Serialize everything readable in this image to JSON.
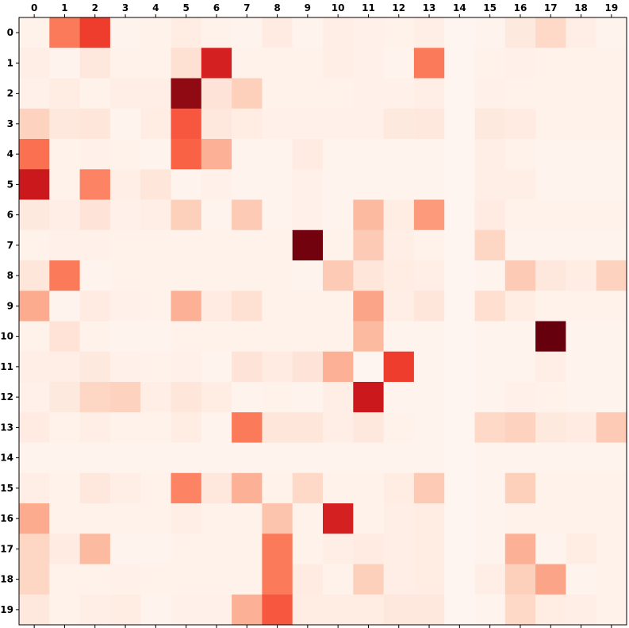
{
  "chart_data": {
    "type": "heatmap",
    "colormap": "Reds",
    "vmin": 0,
    "vmax": 1,
    "x_tick_labels": [
      "0",
      "1",
      "2",
      "3",
      "4",
      "5",
      "6",
      "7",
      "8",
      "9",
      "10",
      "11",
      "12",
      "13",
      "14",
      "15",
      "16",
      "17",
      "18",
      "19"
    ],
    "y_tick_labels": [
      "0",
      "1",
      "2",
      "3",
      "4",
      "5",
      "6",
      "7",
      "8",
      "9",
      "10",
      "11",
      "12",
      "13",
      "14",
      "15",
      "16",
      "17",
      "18",
      "19"
    ],
    "x_axis_position": "top",
    "values": [
      [
        0.02,
        0.45,
        0.62,
        0.01,
        0.02,
        0.05,
        0.02,
        0.01,
        0.06,
        0.01,
        0.04,
        0.03,
        0.02,
        0.04,
        0.0,
        0.01,
        0.07,
        0.15,
        0.04,
        0.01
      ],
      [
        0.04,
        0.01,
        0.08,
        0.02,
        0.02,
        0.12,
        0.72,
        0.02,
        0.02,
        0.02,
        0.04,
        0.03,
        0.01,
        0.45,
        0.0,
        0.02,
        0.03,
        0.02,
        0.02,
        0.02
      ],
      [
        0.03,
        0.05,
        0.02,
        0.04,
        0.04,
        0.92,
        0.1,
        0.18,
        0.02,
        0.02,
        0.02,
        0.03,
        0.03,
        0.04,
        0.0,
        0.03,
        0.02,
        0.02,
        0.02,
        0.02
      ],
      [
        0.17,
        0.08,
        0.09,
        0.01,
        0.05,
        0.55,
        0.08,
        0.05,
        0.03,
        0.03,
        0.03,
        0.03,
        0.07,
        0.08,
        0.0,
        0.07,
        0.06,
        0.02,
        0.02,
        0.02
      ],
      [
        0.48,
        0.02,
        0.03,
        0.02,
        0.01,
        0.52,
        0.28,
        0.01,
        0.01,
        0.06,
        0.01,
        0.01,
        0.01,
        0.01,
        0.0,
        0.04,
        0.02,
        0.01,
        0.01,
        0.01
      ],
      [
        0.75,
        0.02,
        0.42,
        0.04,
        0.09,
        0.01,
        0.03,
        0.01,
        0.01,
        0.03,
        0.01,
        0.01,
        0.01,
        0.01,
        0.0,
        0.04,
        0.04,
        0.01,
        0.01,
        0.01
      ],
      [
        0.07,
        0.04,
        0.1,
        0.03,
        0.04,
        0.18,
        0.01,
        0.2,
        0.01,
        0.03,
        0.01,
        0.25,
        0.05,
        0.35,
        0.0,
        0.06,
        0.02,
        0.02,
        0.02,
        0.02
      ],
      [
        0.02,
        0.03,
        0.03,
        0.02,
        0.02,
        0.02,
        0.02,
        0.02,
        0.02,
        0.98,
        0.02,
        0.2,
        0.04,
        0.02,
        0.0,
        0.16,
        0.01,
        0.01,
        0.01,
        0.01
      ],
      [
        0.09,
        0.45,
        0.01,
        0.02,
        0.02,
        0.02,
        0.02,
        0.02,
        0.02,
        0.01,
        0.2,
        0.09,
        0.05,
        0.04,
        0.0,
        0.01,
        0.2,
        0.08,
        0.05,
        0.17
      ],
      [
        0.3,
        0.01,
        0.06,
        0.03,
        0.02,
        0.28,
        0.06,
        0.12,
        0.02,
        0.02,
        0.02,
        0.32,
        0.04,
        0.09,
        0.0,
        0.13,
        0.05,
        0.02,
        0.02,
        0.02
      ],
      [
        0.02,
        0.11,
        0.02,
        0.01,
        0.01,
        0.02,
        0.02,
        0.02,
        0.02,
        0.02,
        0.02,
        0.25,
        0.01,
        0.01,
        0.0,
        0.01,
        0.01,
        1.0,
        0.01,
        0.01
      ],
      [
        0.04,
        0.04,
        0.07,
        0.03,
        0.02,
        0.03,
        0.01,
        0.1,
        0.06,
        0.1,
        0.28,
        0.0,
        0.62,
        0.01,
        0.0,
        0.01,
        0.01,
        0.04,
        0.01,
        0.01
      ],
      [
        0.03,
        0.07,
        0.16,
        0.17,
        0.04,
        0.09,
        0.05,
        0.01,
        0.02,
        0.01,
        0.04,
        0.75,
        0.01,
        0.01,
        0.0,
        0.01,
        0.03,
        0.02,
        0.01,
        0.01
      ],
      [
        0.06,
        0.02,
        0.04,
        0.02,
        0.02,
        0.05,
        0.01,
        0.45,
        0.09,
        0.09,
        0.04,
        0.08,
        0.02,
        0.01,
        0.0,
        0.15,
        0.17,
        0.07,
        0.06,
        0.2
      ],
      [
        0.01,
        0.01,
        0.01,
        0.01,
        0.01,
        0.01,
        0.01,
        0.01,
        0.01,
        0.01,
        0.01,
        0.01,
        0.01,
        0.01,
        0.0,
        0.01,
        0.01,
        0.01,
        0.01,
        0.01
      ],
      [
        0.04,
        0.02,
        0.08,
        0.04,
        0.02,
        0.42,
        0.08,
        0.28,
        0.02,
        0.15,
        0.02,
        0.02,
        0.05,
        0.2,
        0.0,
        0.01,
        0.18,
        0.02,
        0.02,
        0.02
      ],
      [
        0.3,
        0.02,
        0.02,
        0.02,
        0.02,
        0.04,
        0.02,
        0.02,
        0.22,
        0.02,
        0.72,
        0.02,
        0.04,
        0.05,
        0.0,
        0.01,
        0.02,
        0.02,
        0.02,
        0.02
      ],
      [
        0.16,
        0.06,
        0.25,
        0.01,
        0.01,
        0.02,
        0.02,
        0.02,
        0.45,
        0.02,
        0.04,
        0.06,
        0.04,
        0.05,
        0.0,
        0.01,
        0.28,
        0.01,
        0.05,
        0.02
      ],
      [
        0.16,
        0.02,
        0.02,
        0.03,
        0.02,
        0.02,
        0.02,
        0.02,
        0.45,
        0.06,
        0.02,
        0.18,
        0.04,
        0.05,
        0.0,
        0.04,
        0.18,
        0.32,
        0.01,
        0.02
      ],
      [
        0.08,
        0.02,
        0.04,
        0.05,
        0.01,
        0.03,
        0.03,
        0.28,
        0.55,
        0.05,
        0.05,
        0.05,
        0.08,
        0.08,
        0.0,
        0.01,
        0.15,
        0.05,
        0.04,
        0.02
      ]
    ]
  }
}
